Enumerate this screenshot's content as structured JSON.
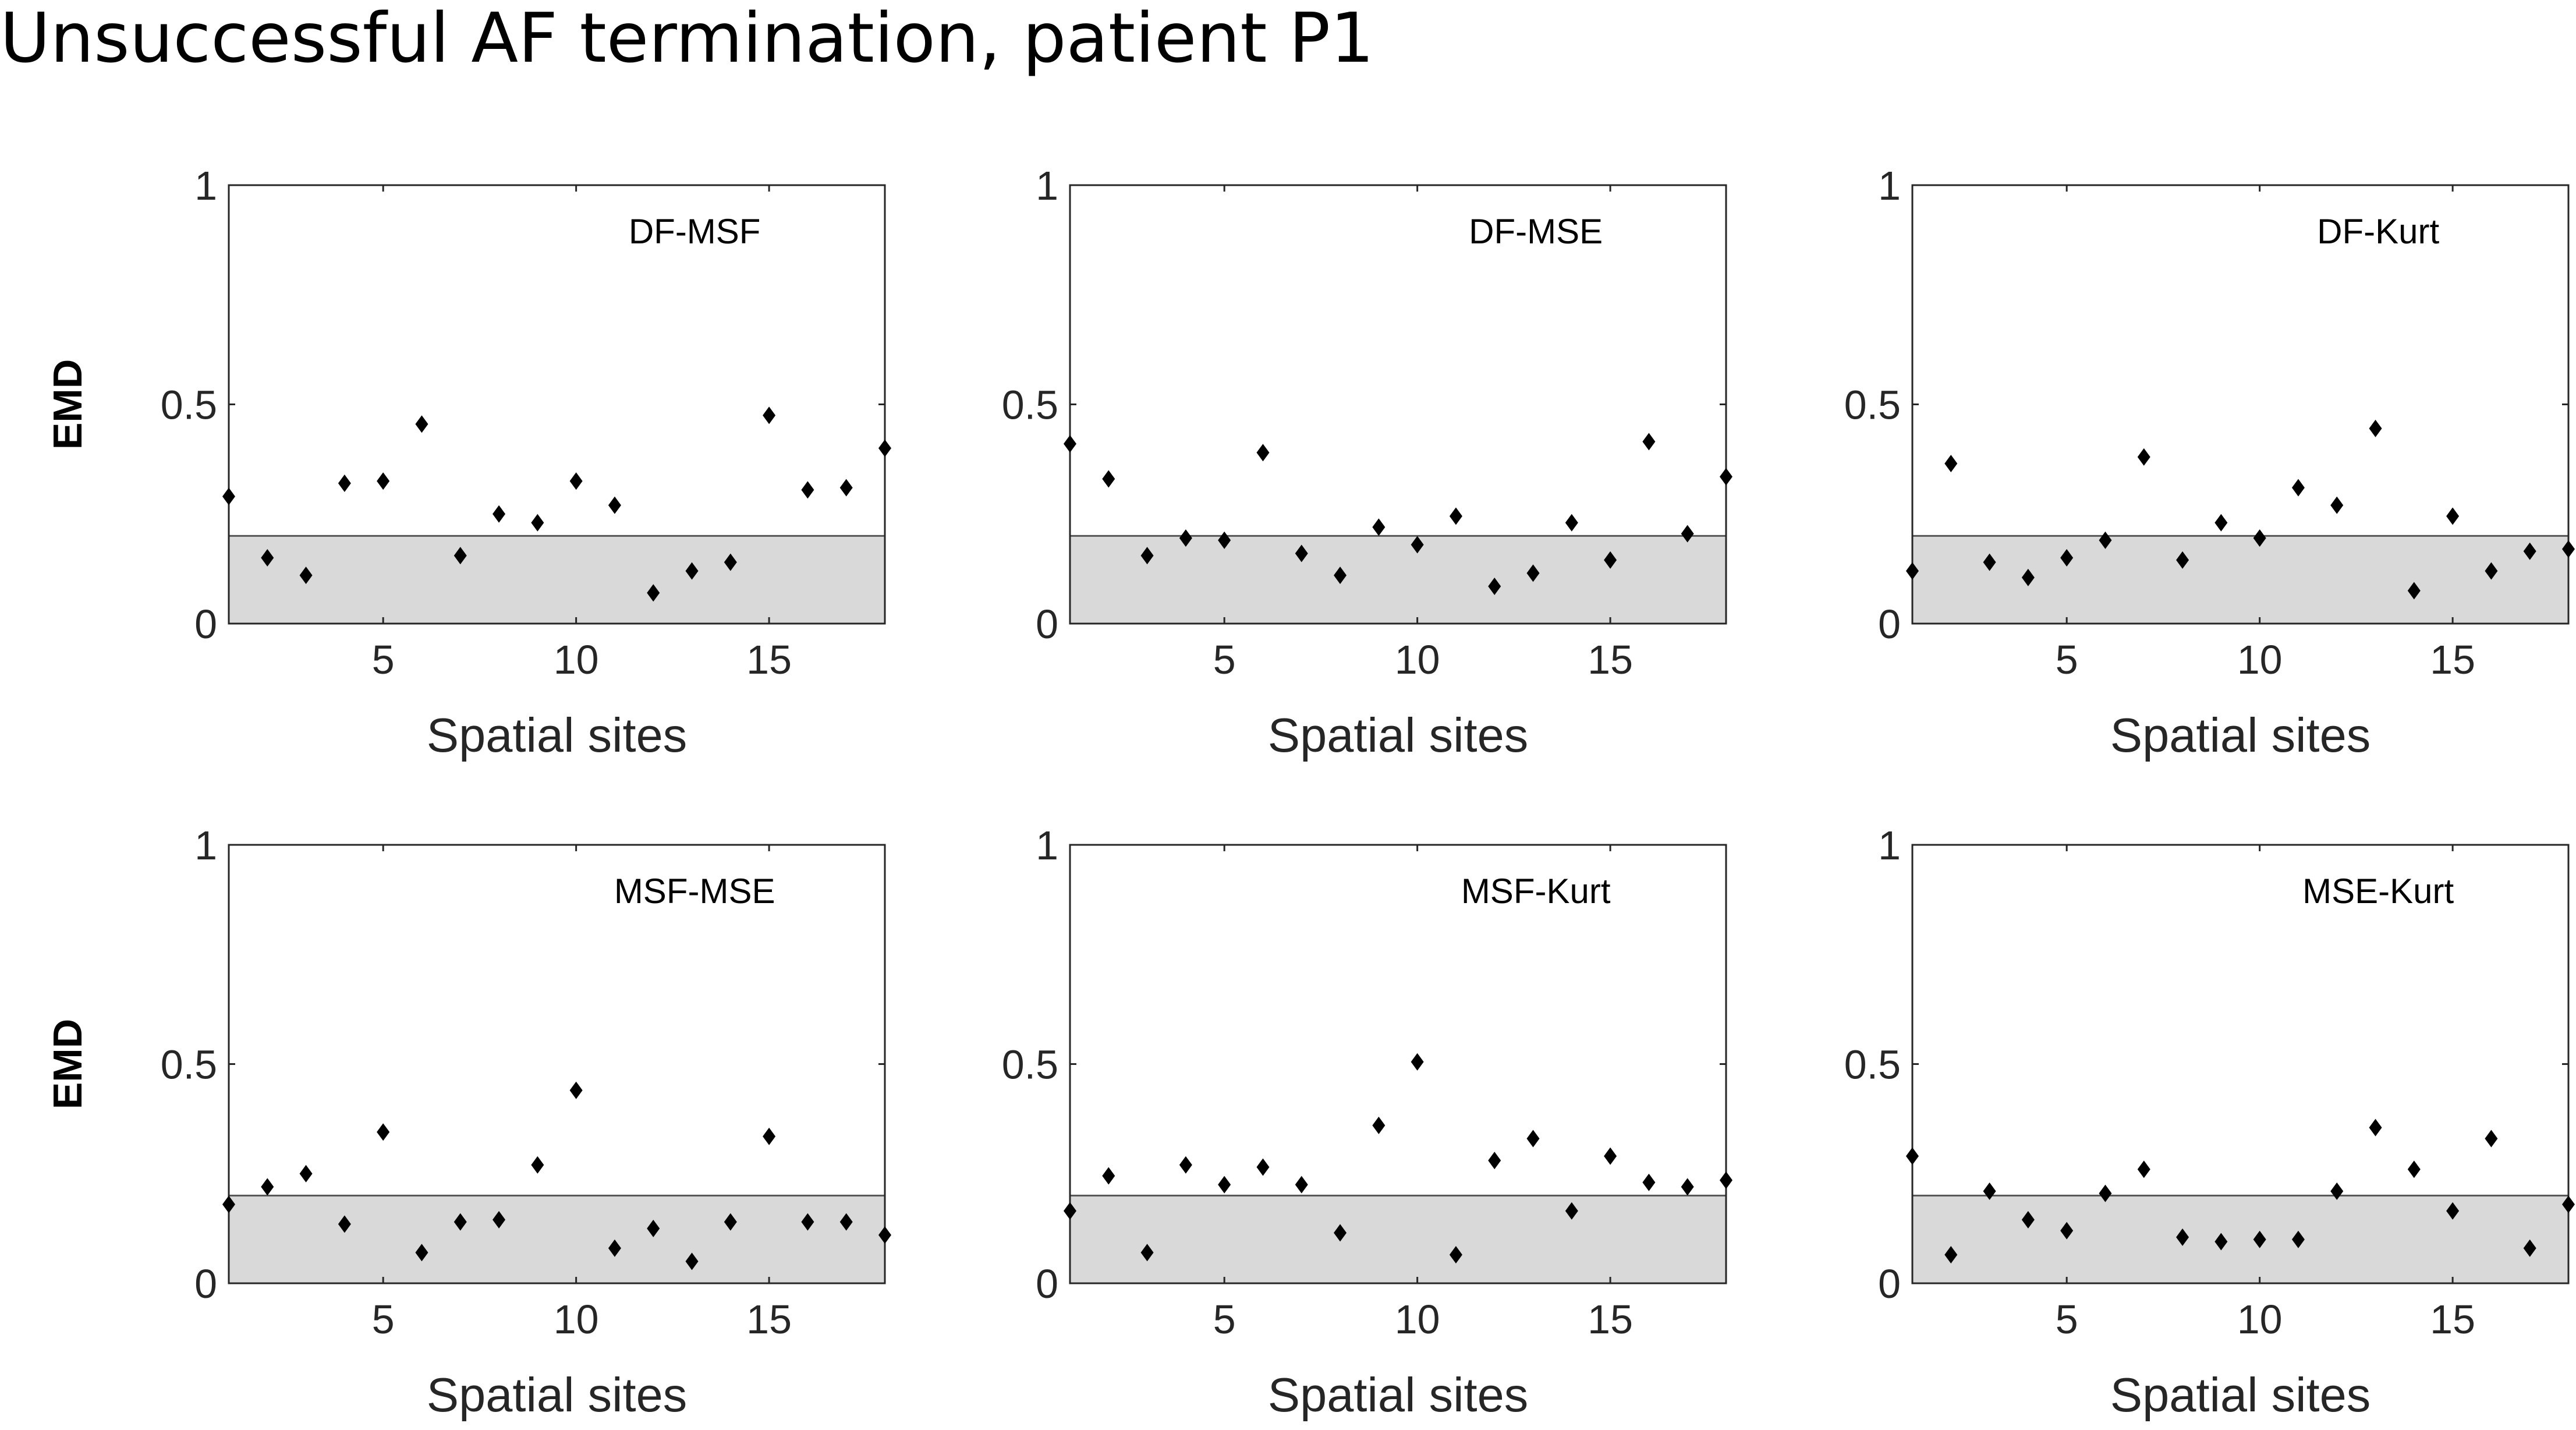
{
  "title": "Unsuccessful AF termination, patient P1",
  "colors": {
    "marker": "#000000",
    "band": "#d9d9d9",
    "axis": "#262626",
    "background": "#ffffff"
  },
  "chart_data": [
    {
      "type": "scatter",
      "title": "DF-MSF",
      "xlabel": "Spatial sites",
      "ylabel": "EMD",
      "xlim": [
        1,
        18
      ],
      "ylim": [
        0,
        1
      ],
      "xticks": [
        5,
        10,
        15
      ],
      "yticks": [
        0,
        0.5,
        1
      ],
      "threshold_band": [
        0,
        0.2
      ],
      "x": [
        1,
        2,
        3,
        4,
        5,
        6,
        7,
        8,
        9,
        10,
        11,
        12,
        13,
        14,
        15,
        16,
        17,
        18
      ],
      "y": [
        0.29,
        0.15,
        0.11,
        0.32,
        0.325,
        0.455,
        0.155,
        0.25,
        0.23,
        0.325,
        0.27,
        0.07,
        0.12,
        0.14,
        0.475,
        0.305,
        0.31,
        0.4
      ]
    },
    {
      "type": "scatter",
      "title": "DF-MSE",
      "xlabel": "Spatial sites",
      "ylabel": "",
      "xlim": [
        1,
        18
      ],
      "ylim": [
        0,
        1
      ],
      "xticks": [
        5,
        10,
        15
      ],
      "yticks": [
        0,
        0.5,
        1
      ],
      "threshold_band": [
        0,
        0.2
      ],
      "x": [
        1,
        2,
        3,
        4,
        5,
        6,
        7,
        8,
        9,
        10,
        11,
        12,
        13,
        14,
        15,
        16,
        17,
        18
      ],
      "y": [
        0.41,
        0.33,
        0.155,
        0.195,
        0.19,
        0.39,
        0.16,
        0.11,
        0.22,
        0.18,
        0.245,
        0.085,
        0.115,
        0.23,
        0.145,
        0.415,
        0.205,
        0.335
      ]
    },
    {
      "type": "scatter",
      "title": "DF-Kurt",
      "xlabel": "Spatial sites",
      "ylabel": "",
      "xlim": [
        1,
        18
      ],
      "ylim": [
        0,
        1
      ],
      "xticks": [
        5,
        10,
        15
      ],
      "yticks": [
        0,
        0.5,
        1
      ],
      "threshold_band": [
        0,
        0.2
      ],
      "x": [
        1,
        2,
        3,
        4,
        5,
        6,
        7,
        8,
        9,
        10,
        11,
        12,
        13,
        14,
        15,
        16,
        17,
        18
      ],
      "y": [
        0.12,
        0.365,
        0.14,
        0.105,
        0.15,
        0.19,
        0.38,
        0.145,
        0.23,
        0.195,
        0.31,
        0.27,
        0.445,
        0.075,
        0.245,
        0.12,
        0.165,
        0.17
      ]
    },
    {
      "type": "scatter",
      "title": "MSF-MSE",
      "xlabel": "Spatial sites",
      "ylabel": "EMD",
      "xlim": [
        1,
        18
      ],
      "ylim": [
        0,
        1
      ],
      "xticks": [
        5,
        10,
        15
      ],
      "yticks": [
        0,
        0.5,
        1
      ],
      "threshold_band": [
        0,
        0.2
      ],
      "x": [
        1,
        2,
        3,
        4,
        5,
        6,
        7,
        8,
        9,
        10,
        11,
        12,
        13,
        14,
        15,
        16,
        17,
        18
      ],
      "y": [
        0.18,
        0.22,
        0.25,
        0.135,
        0.345,
        0.07,
        0.14,
        0.145,
        0.27,
        0.44,
        0.08,
        0.125,
        0.05,
        0.14,
        0.335,
        0.14,
        0.14,
        0.11
      ]
    },
    {
      "type": "scatter",
      "title": "MSF-Kurt",
      "xlabel": "Spatial sites",
      "ylabel": "",
      "xlim": [
        1,
        18
      ],
      "ylim": [
        0,
        1
      ],
      "xticks": [
        5,
        10,
        15
      ],
      "yticks": [
        0,
        0.5,
        1
      ],
      "threshold_band": [
        0,
        0.2
      ],
      "x": [
        1,
        2,
        3,
        4,
        5,
        6,
        7,
        8,
        9,
        10,
        11,
        12,
        13,
        14,
        15,
        16,
        17,
        18
      ],
      "y": [
        0.165,
        0.245,
        0.07,
        0.27,
        0.225,
        0.265,
        0.225,
        0.115,
        0.36,
        0.505,
        0.065,
        0.28,
        0.33,
        0.165,
        0.29,
        0.23,
        0.22,
        0.235
      ]
    },
    {
      "type": "scatter",
      "title": "MSE-Kurt",
      "xlabel": "Spatial sites",
      "ylabel": "",
      "xlim": [
        1,
        18
      ],
      "ylim": [
        0,
        1
      ],
      "xticks": [
        5,
        10,
        15
      ],
      "yticks": [
        0,
        0.5,
        1
      ],
      "threshold_band": [
        0,
        0.2
      ],
      "x": [
        1,
        2,
        3,
        4,
        5,
        6,
        7,
        8,
        9,
        10,
        11,
        12,
        13,
        14,
        15,
        16,
        17,
        18
      ],
      "y": [
        0.29,
        0.065,
        0.21,
        0.145,
        0.12,
        0.205,
        0.26,
        0.105,
        0.095,
        0.1,
        0.1,
        0.21,
        0.355,
        0.26,
        0.165,
        0.33,
        0.08,
        0.18
      ]
    }
  ]
}
